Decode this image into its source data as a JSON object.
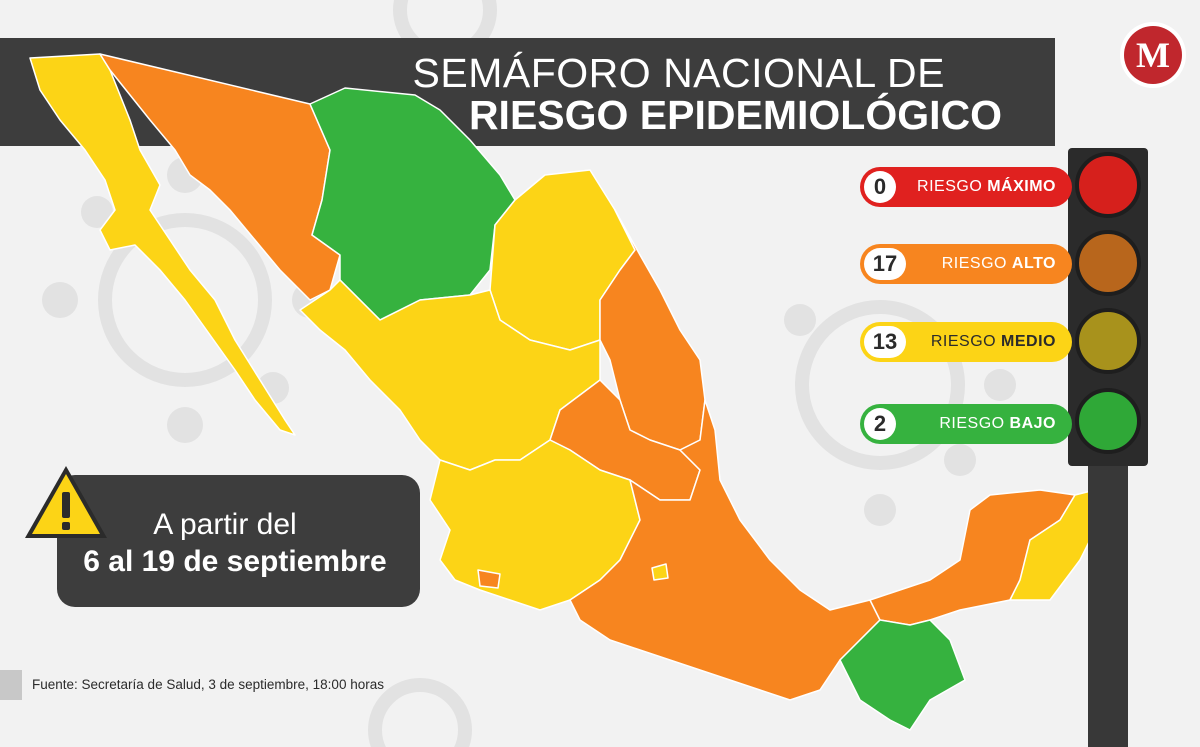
{
  "title": {
    "line1": "SEMÁFORO NACIONAL DE",
    "line2": "RIESGO EPIDEMIOLÓGICO"
  },
  "logo": {
    "letter": "M",
    "color": "#c0272d"
  },
  "legend": [
    {
      "count": "0",
      "prefix": "RIESGO ",
      "level": "MÁXIMO",
      "color": "#e0211f",
      "lamp": "#d6201c"
    },
    {
      "count": "17",
      "prefix": "RIESGO ",
      "level": "ALTO",
      "color": "#f7851f",
      "lamp": "#b8661c"
    },
    {
      "count": "13",
      "prefix": "RIESGO ",
      "level": "MEDIO",
      "color": "#fcd416",
      "lamp": "#a8921c"
    },
    {
      "count": "2",
      "prefix": "RIESGO ",
      "level": "BAJO",
      "color": "#36b23f",
      "lamp": "#2fa837"
    }
  ],
  "date_box": {
    "line1": "A partir del",
    "line2": "6 al 19 de septiembre"
  },
  "warning_icon": "warning-triangle-icon",
  "source": "Fuente: Secretaría de Salud, 3 de septiembre, 18:00 horas",
  "colors": {
    "orange": "#f7851f",
    "yellow": "#fcd416",
    "green": "#36b23f",
    "border": "#ffffff",
    "dark_band": "#3d3d3d"
  }
}
